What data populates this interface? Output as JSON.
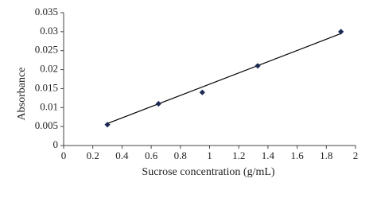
{
  "chart_data": {
    "type": "scatter",
    "xlabel": "Sucrose concentration (g/mL)",
    "ylabel": "Absorbance",
    "series": [
      {
        "color": "#1b2a55",
        "x": [
          0.3,
          0.65,
          0.95,
          1.33,
          1.9
        ],
        "values": [
          0.0055,
          0.011,
          0.014,
          0.021,
          0.03
        ]
      }
    ],
    "trendline": {
      "color": "#000000",
      "x": [
        0.3,
        1.9
      ],
      "y": [
        0.0058,
        0.0295
      ]
    },
    "xlim": [
      0,
      2
    ],
    "xticks": [
      0,
      0.2,
      0.4,
      0.6,
      0.8,
      1,
      1.2,
      1.4,
      1.6,
      1.8,
      2
    ],
    "ylim": [
      0,
      0.035
    ],
    "yticks": [
      0,
      0.005,
      0.01,
      0.015,
      0.02,
      0.025,
      0.03,
      0.035
    ],
    "grid": false
  }
}
